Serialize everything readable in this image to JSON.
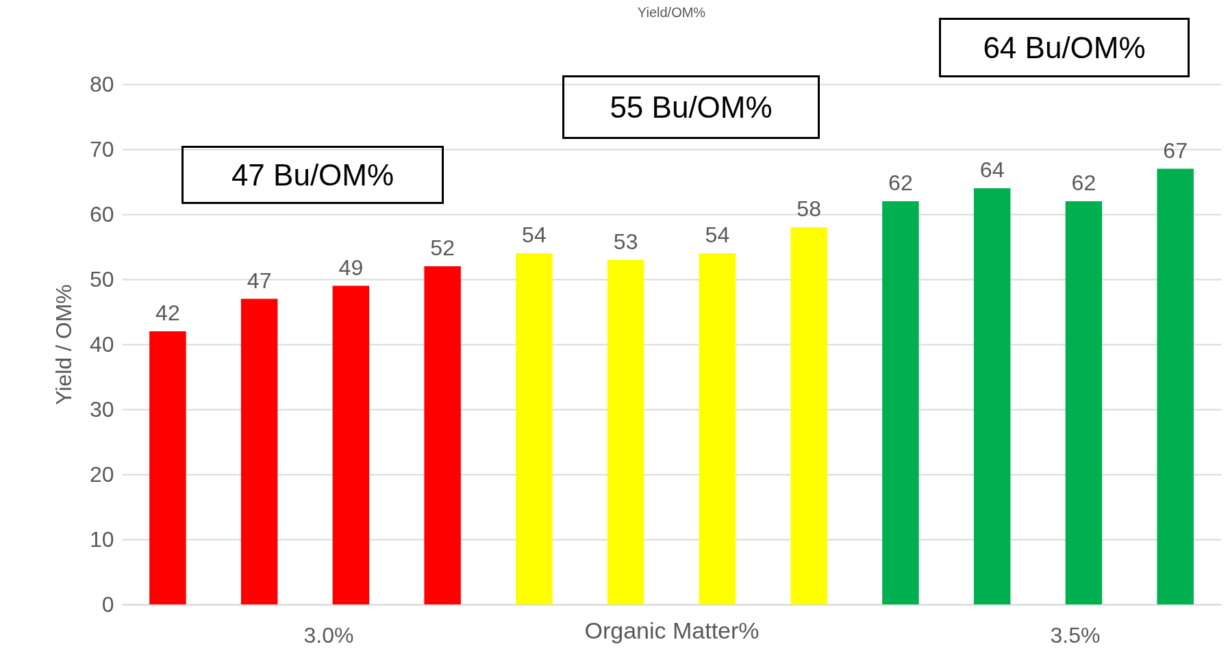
{
  "chart_data": {
    "type": "bar",
    "title": "Yield/OM%",
    "xlabel": "Organic Matter%",
    "ylabel": "Yield  / OM%",
    "categories": [
      null,
      null,
      null,
      null,
      null,
      null,
      null,
      null,
      null,
      null,
      null,
      null
    ],
    "values": [
      42,
      47,
      49,
      52,
      54,
      53,
      54,
      58,
      62,
      64,
      62,
      67
    ],
    "colors": [
      "#ff0000",
      "#ff0000",
      "#ff0000",
      "#ff0000",
      "#ffff00",
      "#ffff00",
      "#ffff00",
      "#ffff00",
      "#00b050",
      "#00b050",
      "#00b050",
      "#00b050"
    ],
    "ylim": [
      0,
      80
    ],
    "yticks": [
      0,
      10,
      20,
      30,
      40,
      50,
      60,
      70,
      80
    ],
    "grid": "y",
    "data_labels": true,
    "annotations": [
      "47 Bu/OM%",
      "55 Bu/OM%",
      "64 Bu/OM%",
      "3.0%",
      "3.5%"
    ]
  }
}
